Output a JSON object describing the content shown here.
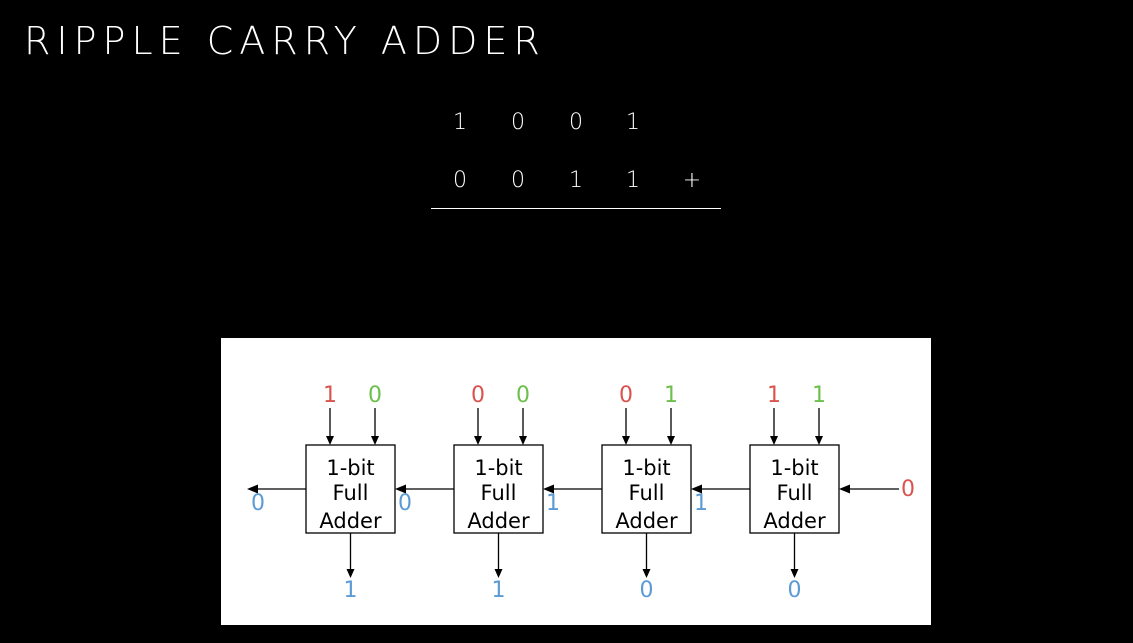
{
  "title": "RIPPLE CARRY ADDER",
  "addition": {
    "row_a": [
      "1",
      "0",
      "0",
      "1"
    ],
    "row_b": [
      "0",
      "0",
      "1",
      "1"
    ],
    "operator": "+"
  },
  "colors": {
    "background": "#000000",
    "text": "#ffffff",
    "input_a": "#d9534f",
    "input_b": "#6cbf4a",
    "output": "#5b9bd5",
    "carry_in": "#d9534f"
  },
  "adders": [
    {
      "label_lines": [
        "1-bit",
        "Full",
        "Adder"
      ],
      "a": "1",
      "b": "0",
      "sum": "1",
      "carry_out": "0"
    },
    {
      "label_lines": [
        "1-bit",
        "Full",
        "Adder"
      ],
      "a": "0",
      "b": "0",
      "sum": "1",
      "carry_out": "0"
    },
    {
      "label_lines": [
        "1-bit",
        "Full",
        "Adder"
      ],
      "a": "0",
      "b": "1",
      "sum": "0",
      "carry_out": "1"
    },
    {
      "label_lines": [
        "1-bit",
        "Full",
        "Adder"
      ],
      "a": "1",
      "b": "1",
      "sum": "0",
      "carry_out": "1"
    }
  ],
  "carry_in": "0"
}
